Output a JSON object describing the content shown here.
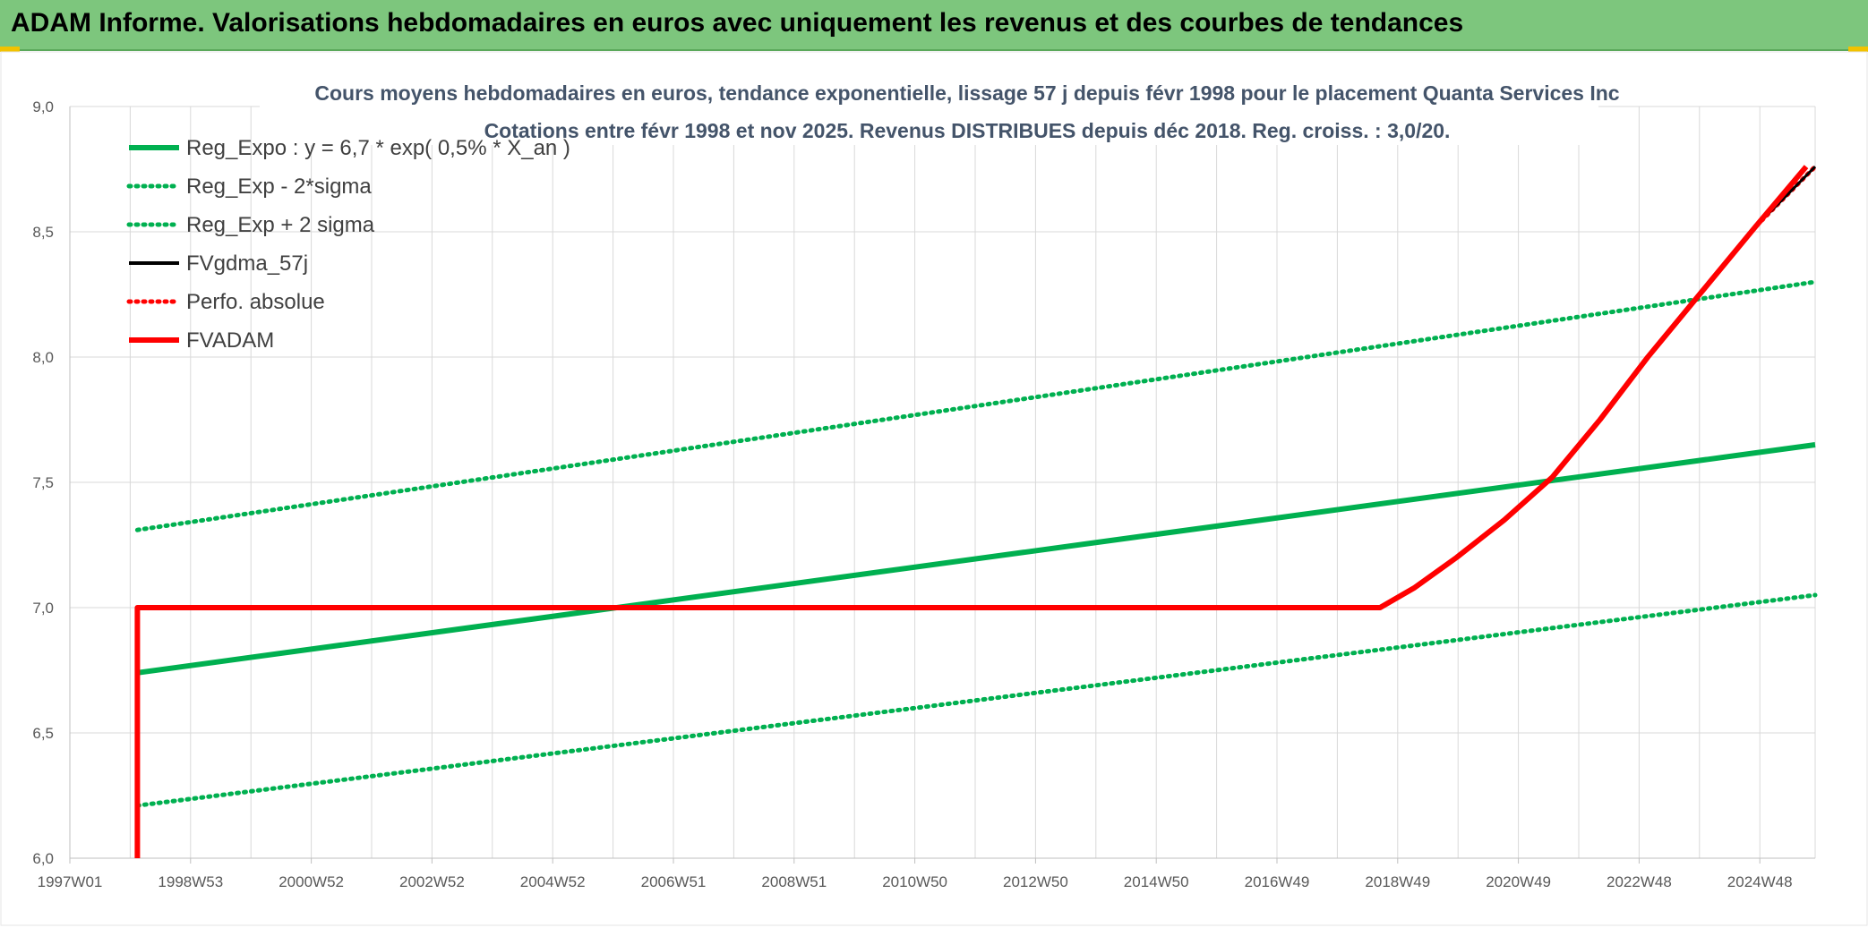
{
  "banner": {
    "title": "ADAM Informe. Valorisations hebdomadaires en euros avec uniquement les revenus et des courbes de tendances"
  },
  "colors": {
    "banner": "#7dc67d",
    "reg_green": "#00b050",
    "fvadam_red": "#ff0000",
    "black": "#000000",
    "grid": "#d9d9d9"
  },
  "chart_data": {
    "type": "line",
    "title": "Cours moyens hebdomadaires en euros, tendance exponentielle, lissage 57 j depuis févr 1998 pour le placement Quanta Services Inc",
    "subtitle": "Cotations entre févr 1998 et nov 2025. Revenus DISTRIBUES depuis déc 2018. Reg. croiss. : 3,0/20.",
    "xlabel": "",
    "ylabel": "",
    "xlim": [
      1997.0,
      2026.2
    ],
    "ylim": [
      6.0,
      9.0
    ],
    "y_ticks": [
      "6,0",
      "6,5",
      "7,0",
      "7,5",
      "8,0",
      "8,5",
      "9,0"
    ],
    "x_tick_labels": [
      "1997W01",
      "1998W53",
      "2000W52",
      "2002W52",
      "2004W52",
      "2006W51",
      "2008W51",
      "2010W50",
      "2012W50",
      "2014W50",
      "2016W49",
      "2018W49",
      "2020W49",
      "2022W48",
      "2024W48"
    ],
    "grid": true,
    "legend_position": "top-left",
    "series": [
      {
        "name": "Reg_Expo : y = 6,7 * exp( 0,5% *  X_an )",
        "color": "#00b050",
        "style": "solid",
        "x": [
          1998.13,
          2026.2
        ],
        "y": [
          6.74,
          7.65
        ]
      },
      {
        "name": "Reg_Exp - 2*sigma",
        "color": "#00b050",
        "style": "dotted",
        "x": [
          1998.13,
          2026.2
        ],
        "y": [
          6.21,
          7.05
        ]
      },
      {
        "name": "Reg_Exp + 2 sigma",
        "color": "#00b050",
        "style": "dotted",
        "x": [
          1998.13,
          2026.2
        ],
        "y": [
          7.31,
          8.3
        ]
      },
      {
        "name": "FVgdma_57j",
        "color": "#000000",
        "style": "solid",
        "x": [
          1998.13,
          2018.0,
          2018.92,
          2019.5,
          2020.2,
          2021.0,
          2021.8,
          2022.6,
          2023.4,
          2024.3,
          2025.2,
          2026.2
        ],
        "y": [
          7.0,
          7.0,
          7.0,
          7.08,
          7.2,
          7.35,
          7.52,
          7.75,
          8.0,
          8.26,
          8.52,
          8.76
        ]
      },
      {
        "name": "Perfo. absolue",
        "color": "#ff0000",
        "style": "dotted",
        "x": [
          1998.13,
          2018.92,
          2019.5,
          2020.2,
          2021.0,
          2021.8,
          2022.6,
          2023.4,
          2024.3,
          2025.2,
          2026.2
        ],
        "y": [
          7.0,
          7.0,
          7.08,
          7.2,
          7.35,
          7.52,
          7.75,
          8.0,
          8.26,
          8.52,
          8.76
        ]
      },
      {
        "name": "FVADAM",
        "color": "#ff0000",
        "style": "solid",
        "x": [
          1998.13,
          1998.13,
          2018.92,
          2019.5,
          2020.2,
          2021.0,
          2021.8,
          2022.6,
          2023.4,
          2024.3,
          2025.2,
          2026.05
        ],
        "y": [
          6.0,
          7.0,
          7.0,
          7.08,
          7.2,
          7.35,
          7.52,
          7.75,
          8.0,
          8.26,
          8.52,
          8.76
        ]
      }
    ]
  }
}
